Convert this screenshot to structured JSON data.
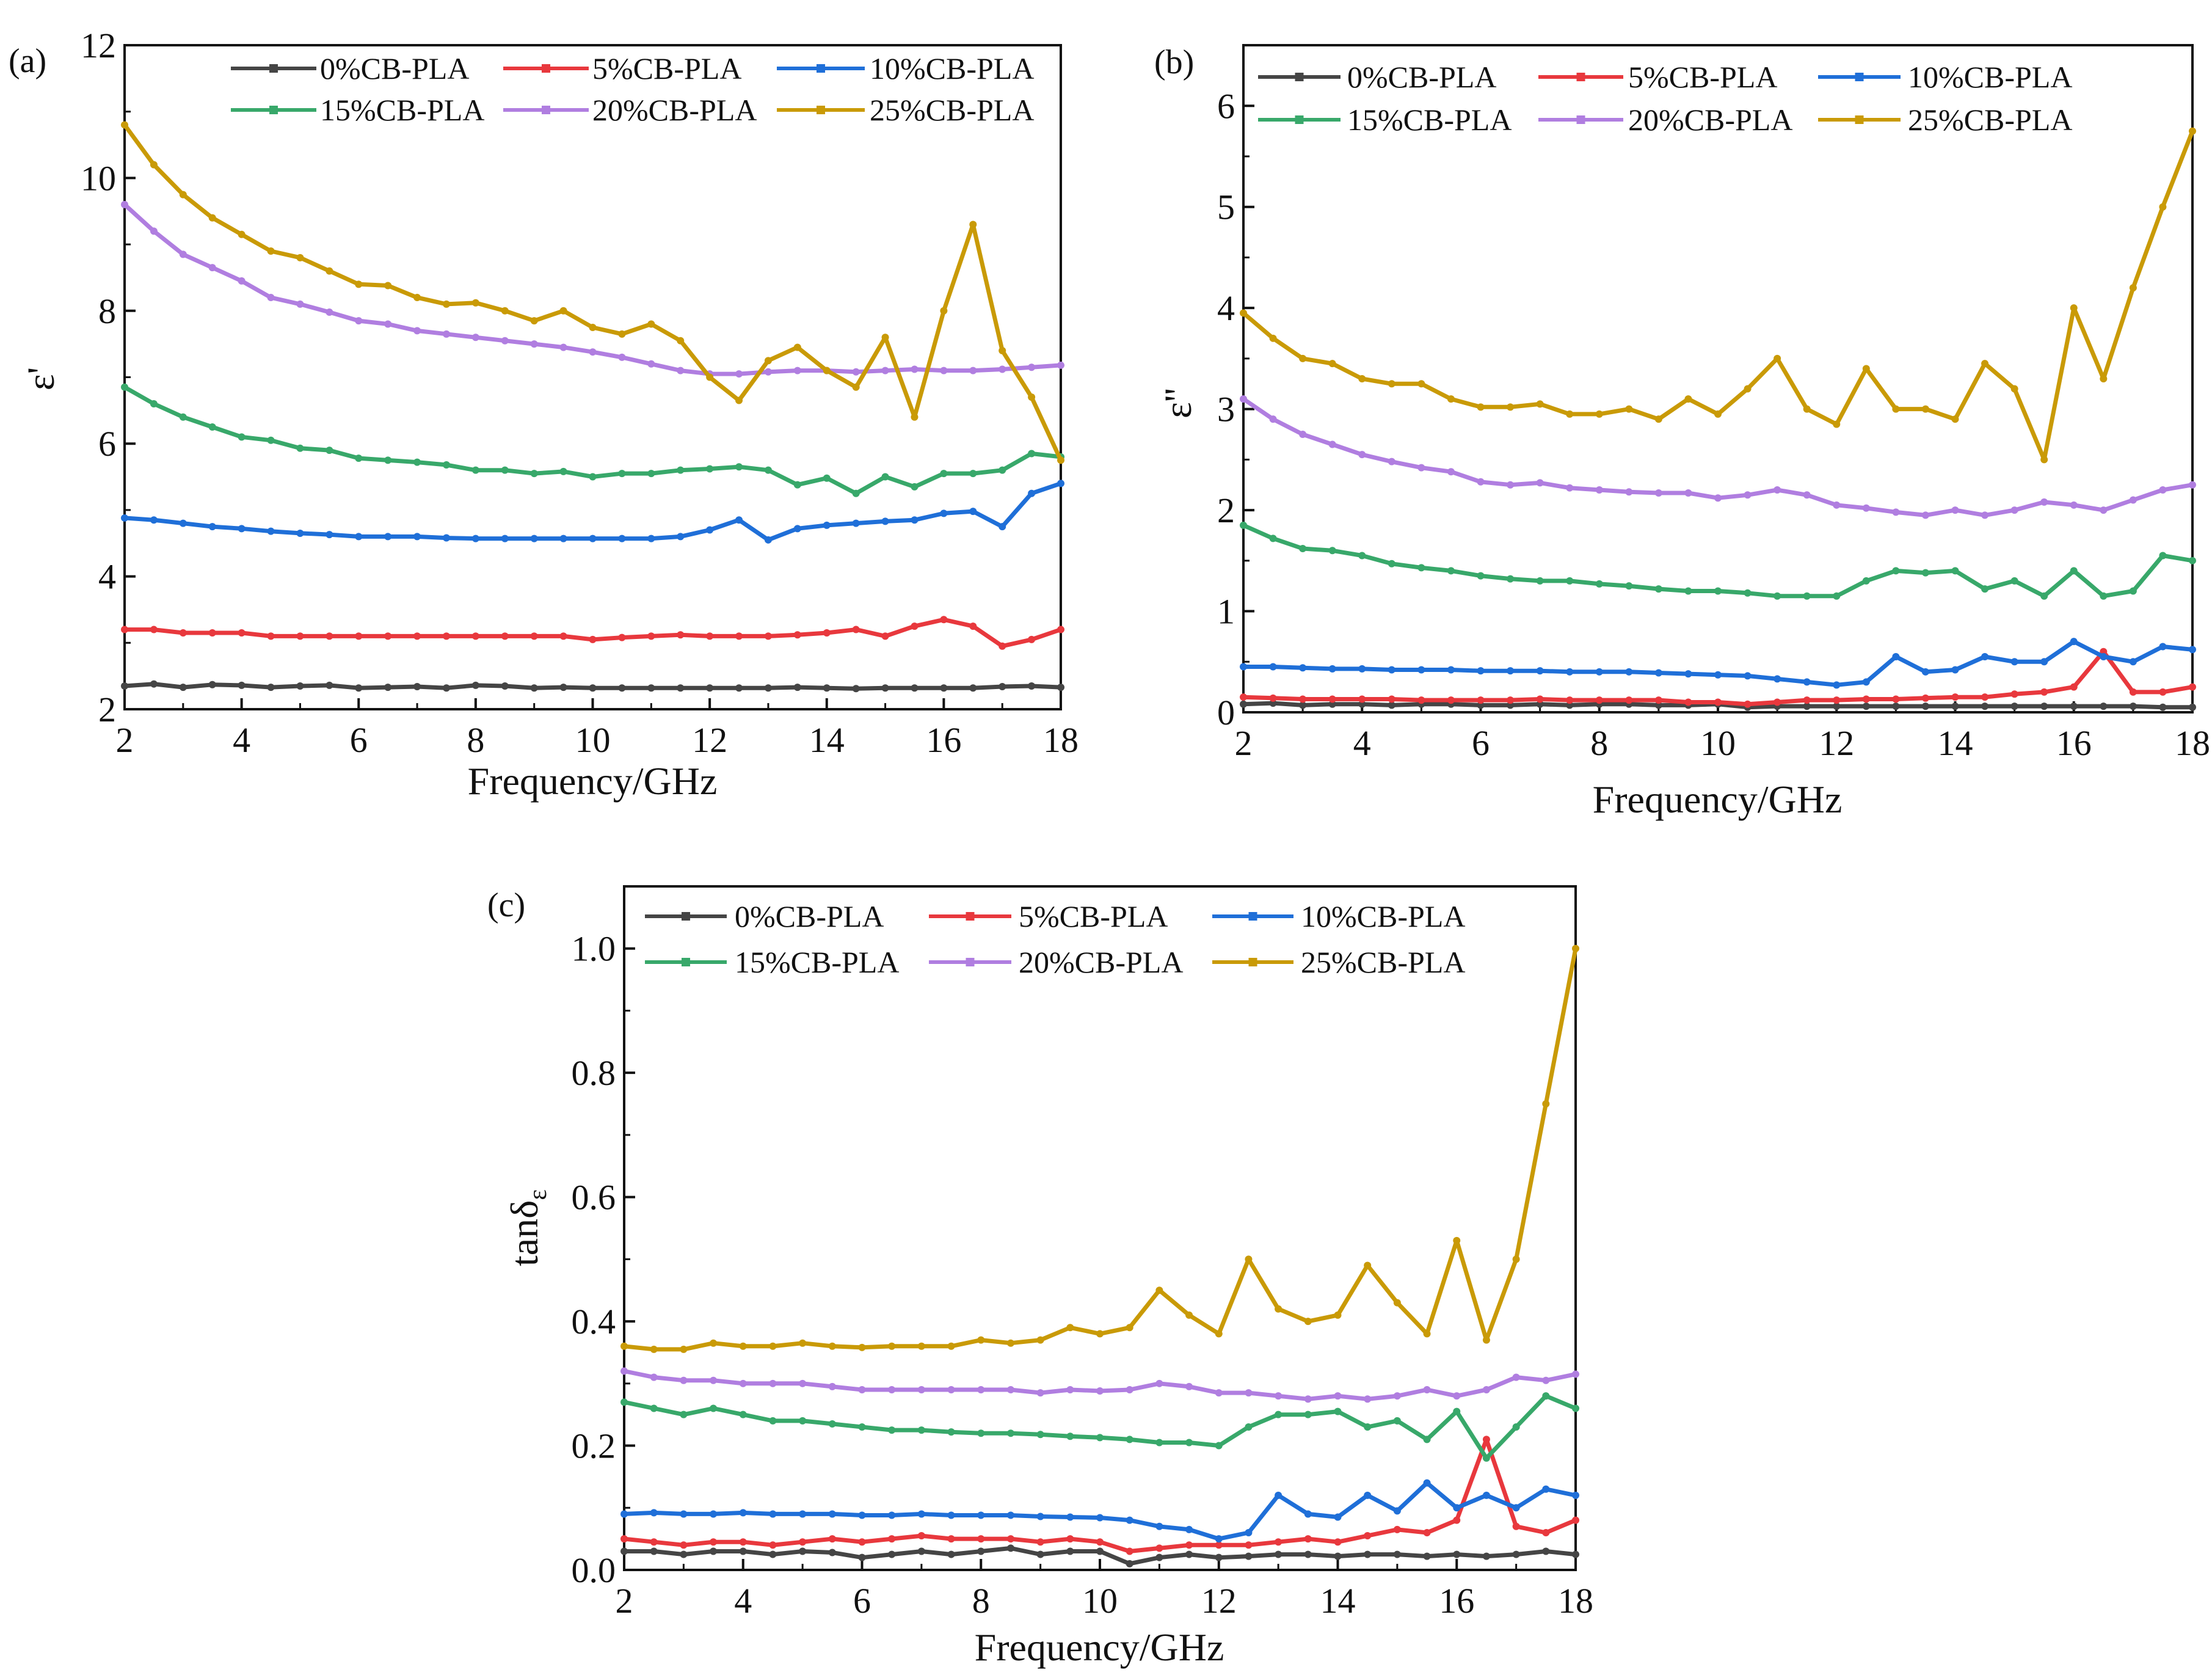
{
  "chart_data": [
    {
      "type": "line",
      "panel_label": "(a)",
      "title": "",
      "xlabel": "Frequency/GHz",
      "ylabel": "ε'",
      "xlim": [
        2,
        18
      ],
      "ylim": [
        2,
        12
      ],
      "xticks": [
        2,
        4,
        6,
        8,
        10,
        12,
        14,
        16,
        18
      ],
      "yticks": [
        2,
        4,
        6,
        8,
        10,
        12
      ],
      "legend": "top",
      "x": [
        2,
        2.5,
        3,
        3.5,
        4,
        4.5,
        5,
        5.5,
        6,
        6.5,
        7,
        7.5,
        8,
        8.5,
        9,
        9.5,
        10,
        10.5,
        11,
        11.5,
        12,
        12.5,
        13,
        13.5,
        14,
        14.5,
        15,
        15.5,
        16,
        16.5,
        17,
        17.5,
        18
      ],
      "series": [
        {
          "name": "0%CB-PLA",
          "color": "#454545",
          "values": [
            2.35,
            2.38,
            2.33,
            2.37,
            2.36,
            2.33,
            2.35,
            2.36,
            2.32,
            2.33,
            2.34,
            2.32,
            2.36,
            2.35,
            2.32,
            2.33,
            2.32,
            2.32,
            2.32,
            2.32,
            2.32,
            2.32,
            2.32,
            2.33,
            2.32,
            2.31,
            2.32,
            2.32,
            2.32,
            2.32,
            2.34,
            2.35,
            2.33
          ]
        },
        {
          "name": "5%CB-PLA",
          "color": "#e8383d",
          "values": [
            3.2,
            3.2,
            3.15,
            3.15,
            3.15,
            3.1,
            3.1,
            3.1,
            3.1,
            3.1,
            3.1,
            3.1,
            3.1,
            3.1,
            3.1,
            3.1,
            3.05,
            3.08,
            3.1,
            3.12,
            3.1,
            3.1,
            3.1,
            3.12,
            3.15,
            3.2,
            3.1,
            3.25,
            3.35,
            3.25,
            2.95,
            3.05,
            3.2
          ]
        },
        {
          "name": "10%CB-PLA",
          "color": "#1f6fd8",
          "values": [
            4.88,
            4.85,
            4.8,
            4.75,
            4.72,
            4.68,
            4.65,
            4.63,
            4.6,
            4.6,
            4.6,
            4.58,
            4.57,
            4.57,
            4.57,
            4.57,
            4.57,
            4.57,
            4.57,
            4.6,
            4.7,
            4.85,
            4.55,
            4.72,
            4.77,
            4.8,
            4.83,
            4.85,
            4.95,
            4.98,
            4.75,
            5.25,
            5.4
          ]
        },
        {
          "name": "15%CB-PLA",
          "color": "#38a86a",
          "values": [
            6.85,
            6.6,
            6.4,
            6.25,
            6.1,
            6.05,
            5.93,
            5.9,
            5.78,
            5.75,
            5.72,
            5.68,
            5.6,
            5.6,
            5.55,
            5.58,
            5.5,
            5.55,
            5.55,
            5.6,
            5.62,
            5.65,
            5.6,
            5.38,
            5.48,
            5.25,
            5.5,
            5.35,
            5.55,
            5.55,
            5.6,
            5.85,
            5.8
          ]
        },
        {
          "name": "20%CB-PLA",
          "color": "#b07ee0",
          "values": [
            9.6,
            9.2,
            8.85,
            8.65,
            8.45,
            8.2,
            8.1,
            7.98,
            7.85,
            7.8,
            7.7,
            7.65,
            7.6,
            7.55,
            7.5,
            7.45,
            7.38,
            7.3,
            7.2,
            7.1,
            7.05,
            7.05,
            7.08,
            7.1,
            7.1,
            7.08,
            7.1,
            7.12,
            7.1,
            7.1,
            7.12,
            7.15,
            7.18
          ]
        },
        {
          "name": "25%CB-PLA",
          "color": "#c99a06",
          "values": [
            10.8,
            10.2,
            9.75,
            9.4,
            9.15,
            8.9,
            8.8,
            8.6,
            8.4,
            8.38,
            8.2,
            8.1,
            8.12,
            8.0,
            7.85,
            8.0,
            7.75,
            7.65,
            7.8,
            7.55,
            7.0,
            6.65,
            7.25,
            7.45,
            7.1,
            6.85,
            7.6,
            6.4,
            8.0,
            9.3,
            7.4,
            6.7,
            5.75
          ]
        }
      ]
    },
    {
      "type": "line",
      "panel_label": "(b)",
      "title": "",
      "xlabel": "Frequency/GHz",
      "ylabel": "ε''",
      "xlim": [
        2,
        18
      ],
      "ylim": [
        0,
        6.6
      ],
      "xticks": [
        2,
        4,
        6,
        8,
        10,
        12,
        14,
        16,
        18
      ],
      "yticks": [
        0,
        1,
        2,
        3,
        4,
        5,
        6
      ],
      "legend": "top",
      "x": [
        2,
        2.5,
        3,
        3.5,
        4,
        4.5,
        5,
        5.5,
        6,
        6.5,
        7,
        7.5,
        8,
        8.5,
        9,
        9.5,
        10,
        10.5,
        11,
        11.5,
        12,
        12.5,
        13,
        13.5,
        14,
        14.5,
        15,
        15.5,
        16,
        16.5,
        17,
        17.5,
        18
      ],
      "series": [
        {
          "name": "0%CB-PLA",
          "color": "#454545",
          "values": [
            0.08,
            0.09,
            0.07,
            0.08,
            0.08,
            0.07,
            0.08,
            0.08,
            0.07,
            0.07,
            0.08,
            0.07,
            0.08,
            0.08,
            0.07,
            0.07,
            0.08,
            0.05,
            0.06,
            0.06,
            0.06,
            0.06,
            0.06,
            0.06,
            0.06,
            0.06,
            0.06,
            0.06,
            0.06,
            0.06,
            0.06,
            0.05,
            0.05
          ]
        },
        {
          "name": "5%CB-PLA",
          "color": "#e8383d",
          "values": [
            0.15,
            0.14,
            0.13,
            0.13,
            0.13,
            0.13,
            0.12,
            0.12,
            0.12,
            0.12,
            0.13,
            0.12,
            0.12,
            0.12,
            0.12,
            0.1,
            0.1,
            0.08,
            0.1,
            0.12,
            0.12,
            0.13,
            0.13,
            0.14,
            0.15,
            0.15,
            0.18,
            0.2,
            0.25,
            0.6,
            0.2,
            0.2,
            0.25
          ]
        },
        {
          "name": "10%CB-PLA",
          "color": "#1f6fd8",
          "values": [
            0.45,
            0.45,
            0.44,
            0.43,
            0.43,
            0.42,
            0.42,
            0.42,
            0.41,
            0.41,
            0.41,
            0.4,
            0.4,
            0.4,
            0.39,
            0.38,
            0.37,
            0.36,
            0.33,
            0.3,
            0.27,
            0.3,
            0.55,
            0.4,
            0.42,
            0.55,
            0.5,
            0.5,
            0.7,
            0.55,
            0.5,
            0.65,
            0.62
          ]
        },
        {
          "name": "15%CB-PLA",
          "color": "#38a86a",
          "values": [
            1.85,
            1.72,
            1.62,
            1.6,
            1.55,
            1.47,
            1.43,
            1.4,
            1.35,
            1.32,
            1.3,
            1.3,
            1.27,
            1.25,
            1.22,
            1.2,
            1.2,
            1.18,
            1.15,
            1.15,
            1.15,
            1.3,
            1.4,
            1.38,
            1.4,
            1.22,
            1.3,
            1.15,
            1.4,
            1.15,
            1.2,
            1.55,
            1.5
          ]
        },
        {
          "name": "20%CB-PLA",
          "color": "#b07ee0",
          "values": [
            3.1,
            2.9,
            2.75,
            2.65,
            2.55,
            2.48,
            2.42,
            2.38,
            2.28,
            2.25,
            2.27,
            2.22,
            2.2,
            2.18,
            2.17,
            2.17,
            2.12,
            2.15,
            2.2,
            2.15,
            2.05,
            2.02,
            1.98,
            1.95,
            2.0,
            1.95,
            2.0,
            2.08,
            2.05,
            2.0,
            2.1,
            2.2,
            2.25
          ]
        },
        {
          "name": "25%CB-PLA",
          "color": "#c99a06",
          "values": [
            3.95,
            3.7,
            3.5,
            3.45,
            3.3,
            3.25,
            3.25,
            3.1,
            3.02,
            3.02,
            3.05,
            2.95,
            2.95,
            3.0,
            2.9,
            3.1,
            2.95,
            3.2,
            3.5,
            3.0,
            2.85,
            3.4,
            3.0,
            3.0,
            2.9,
            3.45,
            3.2,
            2.5,
            4.0,
            3.3,
            4.2,
            5.0,
            5.75
          ]
        }
      ]
    },
    {
      "type": "line",
      "panel_label": "(c)",
      "title": "",
      "xlabel": "Frequency/GHz",
      "ylabel": "tanδ",
      "ylabel_sub": "ε",
      "xlim": [
        2,
        18
      ],
      "ylim": [
        0,
        1.1
      ],
      "xticks": [
        2,
        4,
        6,
        8,
        10,
        12,
        14,
        16,
        18
      ],
      "yticks": [
        0.0,
        0.2,
        0.4,
        0.6,
        0.8,
        1.0
      ],
      "ytick_labels": [
        "0.0",
        "0.2",
        "0.4",
        "0.6",
        "0.8",
        "1.0"
      ],
      "legend": "top",
      "x": [
        2,
        2.5,
        3,
        3.5,
        4,
        4.5,
        5,
        5.5,
        6,
        6.5,
        7,
        7.5,
        8,
        8.5,
        9,
        9.5,
        10,
        10.5,
        11,
        11.5,
        12,
        12.5,
        13,
        13.5,
        14,
        14.5,
        15,
        15.5,
        16,
        16.5,
        17,
        17.5,
        18
      ],
      "series": [
        {
          "name": "0%CB-PLA",
          "color": "#454545",
          "values": [
            0.03,
            0.03,
            0.025,
            0.03,
            0.03,
            0.025,
            0.03,
            0.028,
            0.02,
            0.025,
            0.03,
            0.025,
            0.03,
            0.035,
            0.025,
            0.03,
            0.03,
            0.01,
            0.02,
            0.025,
            0.02,
            0.022,
            0.025,
            0.025,
            0.022,
            0.025,
            0.025,
            0.022,
            0.025,
            0.022,
            0.025,
            0.03,
            0.025
          ]
        },
        {
          "name": "5%CB-PLA",
          "color": "#e8383d",
          "values": [
            0.05,
            0.045,
            0.04,
            0.045,
            0.045,
            0.04,
            0.045,
            0.05,
            0.045,
            0.05,
            0.055,
            0.05,
            0.05,
            0.05,
            0.045,
            0.05,
            0.045,
            0.03,
            0.035,
            0.04,
            0.04,
            0.04,
            0.045,
            0.05,
            0.045,
            0.055,
            0.065,
            0.06,
            0.08,
            0.21,
            0.07,
            0.06,
            0.08
          ]
        },
        {
          "name": "10%CB-PLA",
          "color": "#1f6fd8",
          "values": [
            0.09,
            0.092,
            0.09,
            0.09,
            0.092,
            0.09,
            0.09,
            0.09,
            0.088,
            0.088,
            0.09,
            0.088,
            0.088,
            0.088,
            0.086,
            0.085,
            0.084,
            0.08,
            0.07,
            0.065,
            0.05,
            0.06,
            0.12,
            0.09,
            0.085,
            0.12,
            0.095,
            0.14,
            0.1,
            0.12,
            0.1,
            0.13,
            0.12
          ]
        },
        {
          "name": "15%CB-PLA",
          "color": "#38a86a",
          "values": [
            0.27,
            0.26,
            0.25,
            0.26,
            0.25,
            0.24,
            0.24,
            0.235,
            0.23,
            0.225,
            0.225,
            0.222,
            0.22,
            0.22,
            0.218,
            0.215,
            0.213,
            0.21,
            0.205,
            0.205,
            0.2,
            0.23,
            0.25,
            0.25,
            0.255,
            0.23,
            0.24,
            0.21,
            0.255,
            0.18,
            0.23,
            0.28,
            0.26
          ]
        },
        {
          "name": "20%CB-PLA",
          "color": "#b07ee0",
          "values": [
            0.32,
            0.31,
            0.305,
            0.305,
            0.3,
            0.3,
            0.3,
            0.295,
            0.29,
            0.29,
            0.29,
            0.29,
            0.29,
            0.29,
            0.285,
            0.29,
            0.288,
            0.29,
            0.3,
            0.295,
            0.285,
            0.285,
            0.28,
            0.275,
            0.28,
            0.275,
            0.28,
            0.29,
            0.28,
            0.29,
            0.31,
            0.305,
            0.315
          ]
        },
        {
          "name": "25%CB-PLA",
          "color": "#c99a06",
          "values": [
            0.36,
            0.355,
            0.355,
            0.365,
            0.36,
            0.36,
            0.365,
            0.36,
            0.358,
            0.36,
            0.36,
            0.36,
            0.37,
            0.365,
            0.37,
            0.39,
            0.38,
            0.39,
            0.45,
            0.41,
            0.38,
            0.5,
            0.42,
            0.4,
            0.41,
            0.49,
            0.43,
            0.38,
            0.53,
            0.37,
            0.5,
            0.75,
            1.0
          ]
        }
      ]
    }
  ]
}
